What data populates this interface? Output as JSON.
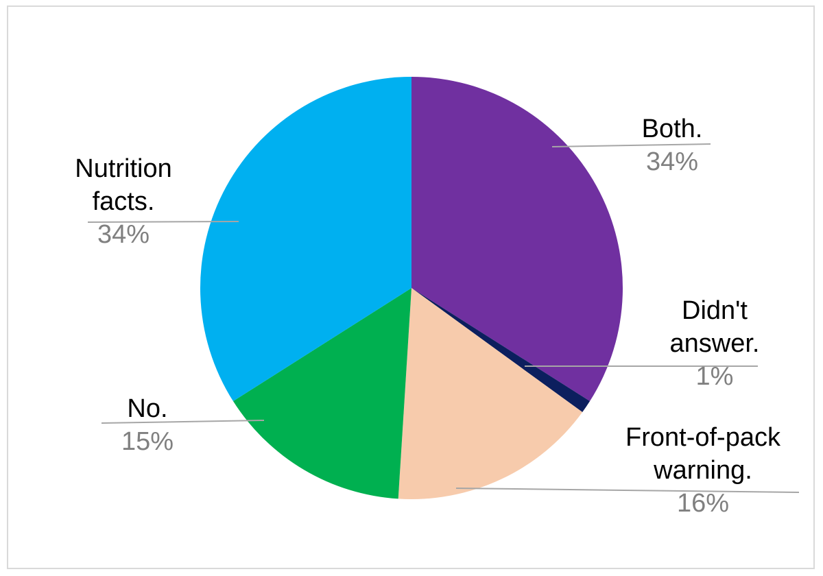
{
  "chart_data": {
    "type": "pie",
    "slices": [
      {
        "category": [
          "Both."
        ],
        "value": 34,
        "label": "34%",
        "color": "#7030a0"
      },
      {
        "category": [
          "Didn't",
          "answer."
        ],
        "value": 1,
        "label": "1%",
        "color": "#0c1f5e"
      },
      {
        "category": [
          "Front-of-pack",
          "warning."
        ],
        "value": 16,
        "label": "16%",
        "color": "#f7cbac"
      },
      {
        "category": [
          "No."
        ],
        "value": 15,
        "label": "15%",
        "color": "#00b050"
      },
      {
        "category": [
          "Nutrition",
          "facts."
        ],
        "value": 34,
        "label": "34%",
        "color": "#00b0f0"
      }
    ],
    "start": "12 o'clock",
    "direction": "clockwise",
    "legend": "none",
    "data_labels": "outside-with-leader-lines"
  }
}
